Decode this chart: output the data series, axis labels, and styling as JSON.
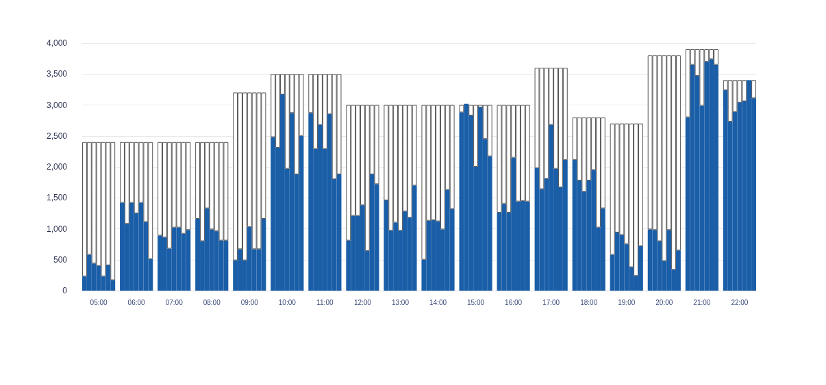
{
  "chart_data": {
    "type": "bar",
    "categories": [
      null,
      null,
      null,
      "05:00",
      null,
      null,
      null,
      null,
      null,
      null,
      null,
      "06:00",
      null,
      null,
      null,
      null,
      null,
      null,
      null,
      "07:00",
      null,
      null,
      null,
      null,
      null,
      null,
      null,
      "08:00",
      null,
      null,
      null,
      null,
      null,
      null,
      null,
      "09:00",
      null,
      null,
      null,
      null,
      null,
      null,
      null,
      "10:00",
      null,
      null,
      null,
      null,
      null,
      null,
      null,
      "11:00",
      null,
      null,
      null,
      null,
      null,
      null,
      null,
      "12:00",
      null,
      null,
      null,
      null,
      null,
      null,
      null,
      "13:00",
      null,
      null,
      null,
      null,
      null,
      null,
      null,
      "14:00",
      null,
      null,
      null,
      null,
      null,
      null,
      null,
      "15:00",
      null,
      null,
      null,
      null,
      null,
      null,
      null,
      "16:00",
      null,
      null,
      null,
      null,
      null,
      null,
      null,
      "17:00",
      null,
      null,
      null,
      null,
      null,
      null,
      null,
      "18:00",
      null,
      null,
      null,
      null,
      null,
      null,
      null,
      "19:00",
      null,
      null,
      null,
      null,
      null,
      null,
      null,
      "20:00",
      null,
      null,
      null,
      null,
      null,
      null,
      null,
      "21:00",
      null,
      null,
      null,
      null,
      null,
      null,
      null,
      "22:00",
      null,
      null,
      null
    ],
    "stacked": true,
    "series": [
      {
        "color": "#1a5ea8",
        "values": [
          230,
          580,
          440,
          400,
          230,
          410,
          170,
          null,
          1420,
          1080,
          1420,
          1250,
          1420,
          1110,
          510,
          null,
          890,
          860,
          680,
          1020,
          1020,
          920,
          980,
          null,
          1160,
          800,
          1330,
          990,
          960,
          810,
          810,
          null,
          490,
          670,
          490,
          1030,
          670,
          670,
          1160,
          null,
          2480,
          2310,
          3170,
          1970,
          2870,
          1880,
          2500,
          null,
          2870,
          2290,
          2680,
          2290,
          2850,
          1800,
          1880,
          null,
          810,
          1210,
          1210,
          1380,
          640,
          1880,
          1720,
          null,
          1460,
          970,
          1100,
          970,
          1280,
          1180,
          1700,
          null,
          500,
          1130,
          1140,
          1120,
          990,
          1630,
          1320,
          null,
          2880,
          3020,
          2830,
          2000,
          2960,
          2450,
          2170,
          null,
          1260,
          1400,
          1260,
          2150,
          1440,
          1450,
          1440,
          null,
          1980,
          1640,
          1810,
          2680,
          1970,
          1670,
          2110,
          null,
          2110,
          1780,
          1600,
          1780,
          1950,
          1020,
          1330,
          null,
          580,
          940,
          900,
          750,
          380,
          240,
          720,
          null,
          990,
          980,
          800,
          480,
          980,
          340,
          650,
          null,
          2800,
          3650,
          3470,
          2990,
          3700,
          3740,
          3650,
          null,
          3240,
          2730,
          2890,
          3040,
          3060,
          3400,
          3110
        ]
      },
      {
        "color": "#ffffff",
        "values": [
          2170,
          1820,
          1960,
          2000,
          2170,
          1990,
          2230,
          null,
          980,
          1320,
          980,
          1150,
          980,
          1290,
          1890,
          null,
          1510,
          1540,
          1720,
          1380,
          1380,
          1480,
          1420,
          null,
          1240,
          1600,
          1070,
          1410,
          1440,
          1590,
          1590,
          null,
          2710,
          2530,
          2710,
          2170,
          2530,
          2530,
          2040,
          null,
          1020,
          1190,
          330,
          1530,
          630,
          1620,
          1000,
          null,
          630,
          1210,
          820,
          1210,
          650,
          1700,
          1620,
          null,
          2190,
          1790,
          1790,
          1620,
          2360,
          1120,
          1280,
          null,
          1540,
          2030,
          1900,
          2030,
          1720,
          1820,
          1300,
          null,
          2500,
          1870,
          1860,
          1880,
          2010,
          1370,
          1680,
          null,
          120,
          null,
          170,
          1000,
          40,
          550,
          830,
          null,
          1740,
          1600,
          1740,
          850,
          1560,
          1550,
          1560,
          null,
          1620,
          1960,
          1790,
          920,
          1630,
          1930,
          1490,
          null,
          690,
          1020,
          1200,
          1020,
          850,
          1780,
          1470,
          null,
          2120,
          1760,
          1800,
          1950,
          2320,
          2460,
          1980,
          null,
          2810,
          2820,
          3000,
          3320,
          2820,
          3460,
          3150,
          null,
          1100,
          250,
          430,
          910,
          200,
          160,
          250,
          null,
          160,
          670,
          510,
          360,
          340,
          null,
          290
        ]
      }
    ],
    "ylim": [
      0,
      4000
    ],
    "yticks": [
      0,
      500,
      {
        "value": 1000,
        "label": "1,000"
      },
      {
        "value": 1500,
        "label": "1,500"
      },
      {
        "value": 2000,
        "label": "2,000"
      },
      {
        "value": 2500,
        "label": "2,500"
      },
      {
        "value": 3000,
        "label": "3,000"
      },
      {
        "value": 3500,
        "label": "3,500"
      },
      {
        "value": 4000,
        "label": "4,000"
      }
    ],
    "grid": "y"
  }
}
